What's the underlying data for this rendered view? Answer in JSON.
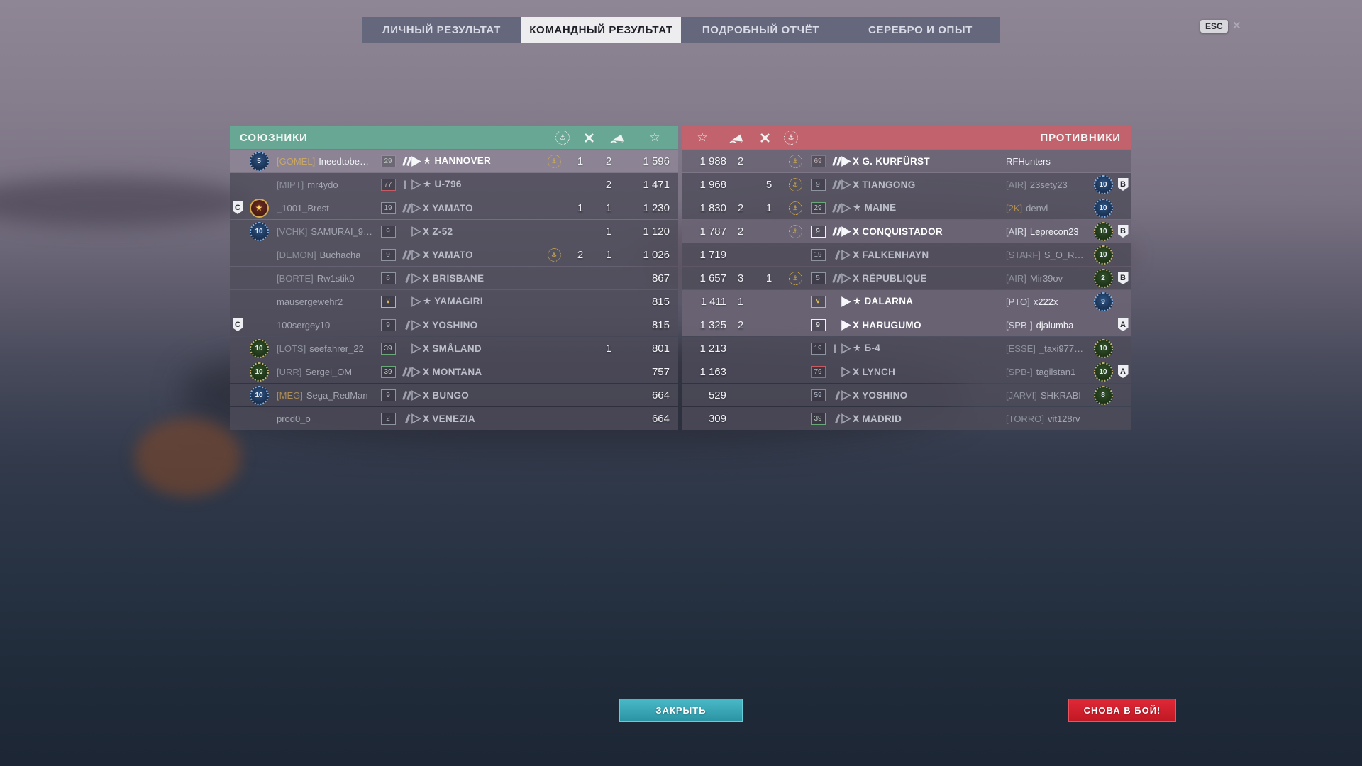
{
  "tabs": [
    {
      "label": "ЛИЧНЫЙ РЕЗУЛЬТАТ",
      "active": false
    },
    {
      "label": "КОМАНДНЫЙ РЕЗУЛЬТАТ",
      "active": true
    },
    {
      "label": "ПОДРОБНЫЙ ОТЧЁТ",
      "active": false
    },
    {
      "label": "СЕРЕБРО И ОПЫТ",
      "active": false
    }
  ],
  "esc": {
    "key": "ESC",
    "close": "×"
  },
  "buttons": {
    "close": "ЗАКРЫТЬ",
    "again": "СНОВА В БОЙ!"
  },
  "colors": {
    "ally_header": "#68a794",
    "enemy_header": "#c2626c",
    "close_accent": "#2f9fae",
    "again_accent": "#d5202f",
    "achievement_gold": "#d9b44a"
  },
  "column_icons": [
    "achievements-wreath",
    "planes-destroyed",
    "ships-destroyed",
    "experience-star"
  ],
  "allies": {
    "title": "СОЮЗНИКИ",
    "rows": [
      {
        "div": "",
        "badge": {
          "style": "blue",
          "num": "5"
        },
        "clan": "[GOMEL]",
        "tan": true,
        "player": "Ineedtobe…",
        "rank": {
          "num": "29",
          "color": "green"
        },
        "cls": "bb",
        "prefix": "★",
        "ship": "HANNOVER",
        "ach": true,
        "planes": "1",
        "ships": "2",
        "xp": "1 596",
        "alive": false,
        "self": true
      },
      {
        "div": "",
        "badge": null,
        "clan": "[MIPT]",
        "tan": false,
        "player": "mr4ydo",
        "rank": {
          "num": "77",
          "color": "red"
        },
        "cls": "ss",
        "prefix": "★",
        "ship": "U-796",
        "ach": false,
        "planes": "",
        "ships": "2",
        "xp": "1 471",
        "alive": false,
        "self": false
      },
      {
        "div": "C",
        "badge": {
          "style": "clan",
          "num": "★"
        },
        "clan": "",
        "tan": false,
        "player": "_1001_Brest",
        "rank": {
          "num": "19",
          "color": "gray"
        },
        "cls": "bb",
        "prefix": "X",
        "ship": "YAMATO",
        "ach": false,
        "planes": "1",
        "ships": "1",
        "xp": "1 230",
        "alive": false,
        "self": false
      },
      {
        "div": "",
        "badge": {
          "style": "blue",
          "num": "10"
        },
        "clan": "[VCHK]",
        "tan": false,
        "player": "SAMURAI_9…",
        "rank": {
          "num": "9",
          "color": "gray"
        },
        "cls": "dd",
        "prefix": "X",
        "ship": "Z-52",
        "ach": false,
        "planes": "",
        "ships": "1",
        "xp": "1 120",
        "alive": false,
        "self": false
      },
      {
        "div": "",
        "badge": null,
        "clan": "[DEMON]",
        "tan": false,
        "player": "Buchacha",
        "rank": {
          "num": "9",
          "color": "gray"
        },
        "cls": "bb",
        "prefix": "X",
        "ship": "YAMATO",
        "ach": true,
        "planes": "2",
        "ships": "1",
        "xp": "1 026",
        "alive": false,
        "self": false
      },
      {
        "div": "",
        "badge": null,
        "clan": "[BORTE]",
        "tan": false,
        "player": "Rw1stik0",
        "rank": {
          "num": "6",
          "color": "gray"
        },
        "cls": "ca",
        "prefix": "X",
        "ship": "BRISBANE",
        "ach": false,
        "planes": "",
        "ships": "",
        "xp": "867",
        "alive": false,
        "self": false
      },
      {
        "div": "",
        "badge": null,
        "clan": "",
        "tan": false,
        "player": "mausergewehr2",
        "rank": {
          "num": "⊻",
          "color": "gold"
        },
        "cls": "dd",
        "prefix": "★",
        "ship": "YAMAGIRI",
        "ach": false,
        "planes": "",
        "ships": "",
        "xp": "815",
        "alive": false,
        "self": false
      },
      {
        "div": "C",
        "badge": null,
        "clan": "",
        "tan": false,
        "player": "100sergey10",
        "rank": {
          "num": "9",
          "color": "gray"
        },
        "cls": "ca",
        "prefix": "X",
        "ship": "YOSHINO",
        "ach": false,
        "planes": "",
        "ships": "",
        "xp": "815",
        "alive": false,
        "self": false
      },
      {
        "div": "",
        "badge": {
          "style": "green",
          "num": "10"
        },
        "clan": "[LOTS]",
        "tan": false,
        "player": "seefahrer_22",
        "rank": {
          "num": "39",
          "color": "green"
        },
        "cls": "dd",
        "prefix": "X",
        "ship": "SMÅLAND",
        "ach": false,
        "planes": "",
        "ships": "1",
        "xp": "801",
        "alive": false,
        "self": false
      },
      {
        "div": "",
        "badge": {
          "style": "green",
          "num": "10"
        },
        "clan": "[URR]",
        "tan": false,
        "player": "Sergei_OM",
        "rank": {
          "num": "39",
          "color": "green"
        },
        "cls": "bb",
        "prefix": "X",
        "ship": "MONTANA",
        "ach": false,
        "planes": "",
        "ships": "",
        "xp": "757",
        "alive": false,
        "self": false
      },
      {
        "div": "",
        "badge": {
          "style": "blue",
          "num": "10"
        },
        "clan": "[MEG]",
        "tan": true,
        "player": "Sega_RedMan",
        "rank": {
          "num": "9",
          "color": "gray"
        },
        "cls": "bb",
        "prefix": "X",
        "ship": "BUNGO",
        "ach": false,
        "planes": "",
        "ships": "",
        "xp": "664",
        "alive": false,
        "self": false
      },
      {
        "div": "",
        "badge": null,
        "clan": "",
        "tan": false,
        "player": "prod0_o",
        "rank": {
          "num": "2",
          "color": "gray"
        },
        "cls": "ca",
        "prefix": "X",
        "ship": "VENEZIA",
        "ach": false,
        "planes": "",
        "ships": "",
        "xp": "664",
        "alive": false,
        "self": false
      }
    ]
  },
  "enemies": {
    "title": "ПРОТИВНИКИ",
    "rows": [
      {
        "div": "",
        "badge": null,
        "clan": "",
        "tan": false,
        "player": "RFHunters",
        "rank": {
          "num": "69",
          "color": "red"
        },
        "cls": "bb",
        "prefix": "X",
        "ship": "G. KURFÜRST",
        "ach": true,
        "planes": "",
        "ships": "2",
        "xp": "1 988",
        "alive": true,
        "self": false
      },
      {
        "div": "B",
        "badge": {
          "style": "blue",
          "num": "10"
        },
        "clan": "[AIR]",
        "tan": false,
        "player": "23sety23",
        "rank": {
          "num": "9",
          "color": "gray"
        },
        "cls": "bb",
        "prefix": "X",
        "ship": "TIANGONG",
        "ach": true,
        "planes": "5",
        "ships": "",
        "xp": "1 968",
        "alive": false,
        "self": false
      },
      {
        "div": "",
        "badge": {
          "style": "blue",
          "num": "10"
        },
        "clan": "[2K]",
        "tan": true,
        "player": "denvl",
        "rank": {
          "num": "29",
          "color": "green"
        },
        "cls": "bb",
        "prefix": "★",
        "ship": "MAINE",
        "ach": true,
        "planes": "1",
        "ships": "2",
        "xp": "1 830",
        "alive": false,
        "self": false
      },
      {
        "div": "B",
        "badge": {
          "style": "green",
          "num": "10"
        },
        "clan": "[AIR]",
        "tan": false,
        "player": "Leprecon23",
        "rank": {
          "num": "9",
          "color": "white"
        },
        "cls": "bb",
        "prefix": "X",
        "ship": "CONQUISTADOR",
        "ach": true,
        "planes": "",
        "ships": "2",
        "xp": "1 787",
        "alive": true,
        "self": false
      },
      {
        "div": "",
        "badge": {
          "style": "green",
          "num": "10"
        },
        "clan": "[STARF]",
        "tan": false,
        "player": "S_O_R_A_…",
        "rank": {
          "num": "19",
          "color": "gray"
        },
        "cls": "ca",
        "prefix": "X",
        "ship": "FALKENHAYN",
        "ach": false,
        "planes": "",
        "ships": "",
        "xp": "1 719",
        "alive": false,
        "self": false
      },
      {
        "div": "B",
        "badge": {
          "style": "green",
          "num": "2"
        },
        "clan": "[AIR]",
        "tan": false,
        "player": "Mir39ov",
        "rank": {
          "num": "5",
          "color": "gray"
        },
        "cls": "bb",
        "prefix": "X",
        "ship": "RÉPUBLIQUE",
        "ach": true,
        "planes": "1",
        "ships": "3",
        "xp": "1 657",
        "alive": false,
        "self": false
      },
      {
        "div": "",
        "badge": {
          "style": "blue",
          "num": "9"
        },
        "clan": "[PTO]",
        "tan": false,
        "player": "x222x",
        "rank": {
          "num": "⊻",
          "color": "gold"
        },
        "cls": "dd",
        "prefix": "★",
        "ship": "DALARNA",
        "ach": false,
        "planes": "",
        "ships": "1",
        "xp": "1 411",
        "alive": true,
        "self": false
      },
      {
        "div": "A",
        "badge": null,
        "clan": "[SPB-]",
        "tan": false,
        "player": "djalumba",
        "rank": {
          "num": "9",
          "color": "white"
        },
        "cls": "dd",
        "prefix": "X",
        "ship": "HARUGUMO",
        "ach": false,
        "planes": "",
        "ships": "2",
        "xp": "1 325",
        "alive": true,
        "self": false
      },
      {
        "div": "",
        "badge": {
          "style": "green",
          "num": "10"
        },
        "clan": "[ESSE]",
        "tan": false,
        "player": "_taxi977977",
        "rank": {
          "num": "19",
          "color": "gray"
        },
        "cls": "ss",
        "prefix": "★",
        "ship": "Б-4",
        "ach": false,
        "planes": "",
        "ships": "",
        "xp": "1 213",
        "alive": false,
        "self": false
      },
      {
        "div": "A",
        "badge": {
          "style": "green",
          "num": "10"
        },
        "clan": "[SPB-]",
        "tan": false,
        "player": "tagilstan1",
        "rank": {
          "num": "79",
          "color": "red"
        },
        "cls": "dd",
        "prefix": "X",
        "ship": "LYNCH",
        "ach": false,
        "planes": "",
        "ships": "",
        "xp": "1 163",
        "alive": false,
        "self": false
      },
      {
        "div": "",
        "badge": {
          "style": "green",
          "num": "8"
        },
        "clan": "[JARVI]",
        "tan": false,
        "player": "SHKRABI",
        "rank": {
          "num": "59",
          "color": "blue"
        },
        "cls": "ca",
        "prefix": "X",
        "ship": "YOSHINO",
        "ach": false,
        "planes": "",
        "ships": "",
        "xp": "529",
        "alive": false,
        "self": false
      },
      {
        "div": "",
        "badge": null,
        "clan": "[TORRO]",
        "tan": false,
        "player": "vit128rv",
        "rank": {
          "num": "39",
          "color": "green"
        },
        "cls": "ca",
        "prefix": "X",
        "ship": "MADRID",
        "ach": false,
        "planes": "",
        "ships": "",
        "xp": "309",
        "alive": false,
        "self": false
      }
    ]
  }
}
